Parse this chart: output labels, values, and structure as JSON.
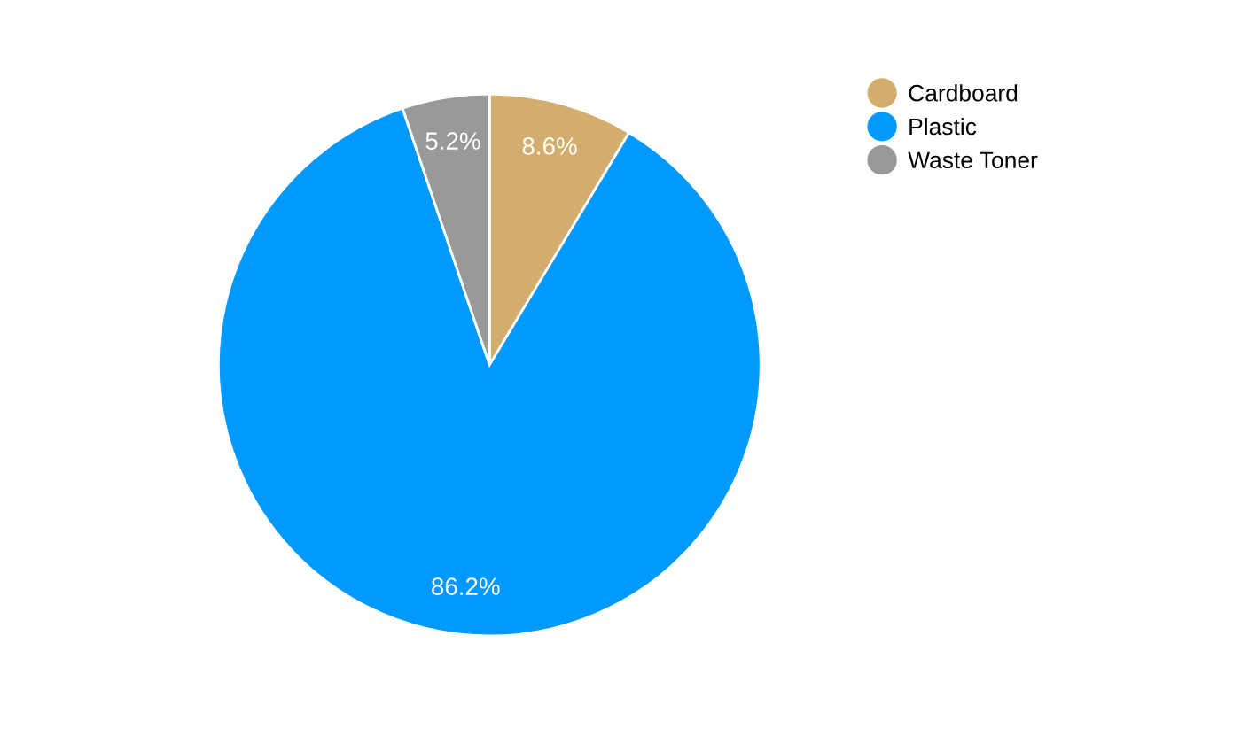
{
  "chart_data": {
    "type": "pie",
    "categories": [
      "Cardboard",
      "Plastic",
      "Waste Toner"
    ],
    "values": [
      8.6,
      86.2,
      5.2
    ],
    "colors": [
      "#d2ad6d",
      "#0099ff",
      "#999999"
    ],
    "value_labels": [
      "8.6%",
      "86.2%",
      "5.2%"
    ],
    "legend": "top right"
  }
}
